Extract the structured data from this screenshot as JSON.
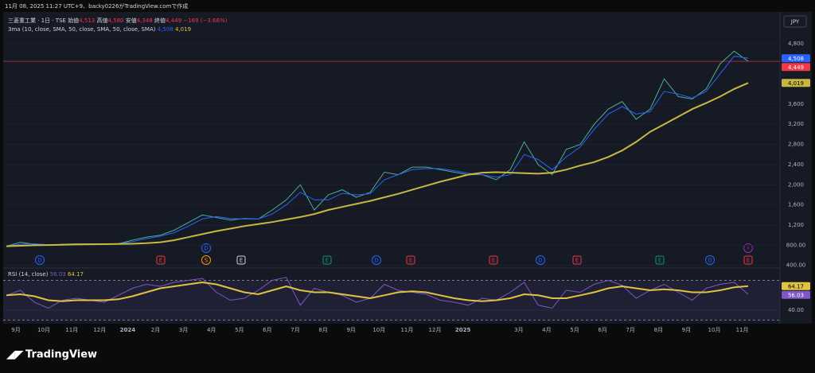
{
  "header": {
    "timestamp": "11月 08, 2025 11:27 UTC+9、backy0226がTradingView.comで作成",
    "symbol": "三菱重工業 · 1日 · TSE",
    "ohlc": [
      {
        "label": "始値",
        "value": "4,513"
      },
      {
        "label": "高値",
        "value": "4,580"
      },
      {
        "label": "安値",
        "value": "4,348"
      },
      {
        "label": "終値",
        "value": "4,449"
      }
    ],
    "change": "−169 (−3.66%)"
  },
  "currency": "JPY",
  "logo": "TradingView",
  "time_axis": [
    "9月",
    "10月",
    "11月",
    "12月",
    "2024",
    "2月",
    "3月",
    "4月",
    "5月",
    "6月",
    "7月",
    "8月",
    "9月",
    "10月",
    "11月",
    "12月",
    "2025",
    null,
    "3月",
    "4月",
    "5月",
    "6月",
    "7月",
    "8月",
    "9月",
    "10月",
    "11月"
  ],
  "events": [
    {
      "label": "D",
      "color": "#2962ff"
    },
    {
      "label": "E",
      "color": "#f23645"
    },
    {
      "label": "D",
      "color": "#2962ff"
    },
    {
      "label": "S",
      "color": "#ff9800"
    },
    {
      "label": "E",
      "color": "#d1d4dc"
    },
    {
      "label": "E",
      "color": "#089981"
    },
    {
      "label": "D",
      "color": "#2962ff"
    },
    {
      "label": "E",
      "color": "#f23645"
    },
    {
      "label": "E",
      "color": "#f23645"
    },
    {
      "label": "D",
      "color": "#2962ff"
    },
    {
      "label": "E",
      "color": "#f23645"
    },
    {
      "label": "E",
      "color": "#089981"
    },
    {
      "label": "D",
      "color": "#2962ff"
    },
    {
      "label": "E",
      "color": "#f23645"
    },
    {
      "label": "⚡",
      "color": "#9c27b0"
    }
  ],
  "chart_data": [
    {
      "type": "line",
      "indicator": "3ma (10, close, SMA, 50, close, SMA, 50, close, SMA)",
      "ylim": [
        380,
        5270
      ],
      "yticks": [
        {
          "value": 400,
          "label": "400.00"
        },
        {
          "value": 800,
          "label": "800.00"
        },
        {
          "value": 1200,
          "label": "1,200"
        },
        {
          "value": 1600,
          "label": "1,600"
        },
        {
          "value": 2000,
          "label": "2,000"
        },
        {
          "value": 2400,
          "label": "2,400"
        },
        {
          "value": 2800,
          "label": "2,800"
        },
        {
          "value": 3200,
          "label": "3,200"
        },
        {
          "value": 3600,
          "label": "3,600"
        },
        {
          "value": 4800,
          "label": "4,800"
        }
      ],
      "series": [
        {
          "color": "#4caf8f",
          "label_color": "#f23645",
          "last_label": "4,449",
          "values": [
            780,
            860,
            820,
            800,
            820,
            830,
            830,
            820,
            830,
            900,
            960,
            1000,
            1100,
            1250,
            1400,
            1350,
            1300,
            1330,
            1320,
            1500,
            1700,
            2000,
            1500,
            1800,
            1900,
            1750,
            1850,
            2250,
            2200,
            2350,
            2350,
            2300,
            2250,
            2200,
            2200,
            2100,
            2300,
            2850,
            2400,
            2200,
            2700,
            2800,
            3200,
            3500,
            3650,
            3300,
            3500,
            4100,
            3750,
            3700,
            3900,
            4400,
            4650,
            4449
          ]
        },
        {
          "color": "#2962ff",
          "last_label": "4,508",
          "values": [
            780,
            820,
            830,
            810,
            815,
            825,
            828,
            825,
            828,
            870,
            930,
            980,
            1050,
            1180,
            1320,
            1370,
            1330,
            1320,
            1320,
            1420,
            1600,
            1850,
            1700,
            1700,
            1830,
            1800,
            1820,
            2100,
            2200,
            2300,
            2320,
            2320,
            2280,
            2230,
            2200,
            2150,
            2200,
            2600,
            2500,
            2300,
            2550,
            2750,
            3100,
            3400,
            3550,
            3400,
            3450,
            3850,
            3800,
            3720,
            3850,
            4200,
            4550,
            4508
          ]
        },
        {
          "color": "#c9b840",
          "last_label": "4,019",
          "values": [
            780,
            790,
            800,
            805,
            810,
            815,
            820,
            822,
            825,
            830,
            840,
            860,
            900,
            960,
            1020,
            1080,
            1130,
            1180,
            1220,
            1260,
            1310,
            1360,
            1420,
            1500,
            1560,
            1620,
            1680,
            1750,
            1820,
            1900,
            1980,
            2060,
            2130,
            2200,
            2240,
            2250,
            2240,
            2230,
            2220,
            2240,
            2300,
            2380,
            2450,
            2550,
            2680,
            2850,
            3050,
            3200,
            3350,
            3500,
            3620,
            3750,
            3900,
            4019
          ]
        }
      ]
    },
    {
      "type": "line",
      "indicator": "RSI (14, close)",
      "ylim": [
        28,
        80
      ],
      "bands": [
        70,
        30
      ],
      "yticks": [
        {
          "value": 40,
          "label": "40.00"
        }
      ],
      "series": [
        {
          "color": "#7e57c2",
          "last_label": "56.03",
          "values": [
            55,
            60,
            48,
            42,
            50,
            52,
            50,
            48,
            55,
            62,
            66,
            64,
            68,
            70,
            72,
            58,
            50,
            52,
            60,
            70,
            73,
            45,
            62,
            58,
            55,
            48,
            52,
            66,
            60,
            58,
            56,
            50,
            48,
            45,
            52,
            50,
            58,
            68,
            45,
            42,
            60,
            58,
            66,
            70,
            65,
            52,
            60,
            66,
            58,
            50,
            62,
            66,
            68,
            56.03
          ]
        },
        {
          "color": "#e0c341",
          "last_label": "64.17",
          "values": [
            55,
            56,
            54,
            50,
            49,
            50,
            50,
            50,
            51,
            54,
            58,
            62,
            64,
            66,
            68,
            66,
            62,
            58,
            56,
            60,
            64,
            60,
            58,
            58,
            56,
            54,
            52,
            55,
            58,
            59,
            58,
            55,
            52,
            50,
            49,
            50,
            52,
            56,
            55,
            52,
            52,
            55,
            58,
            62,
            64,
            62,
            60,
            61,
            60,
            58,
            58,
            60,
            63,
            64.17
          ]
        }
      ]
    }
  ]
}
